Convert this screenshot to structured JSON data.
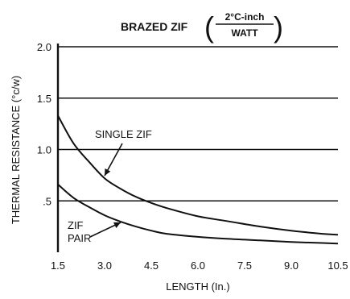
{
  "chart_data": {
    "type": "line",
    "title": "BRAZED ZIF",
    "title_fraction": {
      "numerator": "2°C-inch",
      "denominator": "WATT"
    },
    "xlabel": "LENGTH (In.)",
    "ylabel": "THERMAL RESISTANCE (°c/w)",
    "xlim": [
      1.5,
      10.5
    ],
    "ylim": [
      0,
      2.0
    ],
    "x_ticks": [
      "1.5",
      "3.0",
      "4.5",
      "6.0",
      "7.5",
      "9.0",
      "10.5"
    ],
    "y_ticks": [
      {
        "value": 0.5,
        "label": ".5"
      },
      {
        "value": 1.0,
        "label": "1.0"
      },
      {
        "value": 1.5,
        "label": "1.5"
      },
      {
        "value": 2.0,
        "label": "2.0"
      }
    ],
    "grid": "horizontal",
    "series": [
      {
        "name": "SINGLE ZIF",
        "label_lines": [
          "SINGLE ZIF"
        ],
        "x": [
          1.5,
          2.0,
          2.5,
          3.0,
          3.5,
          4.0,
          4.5,
          5.0,
          6.0,
          7.0,
          8.0,
          9.0,
          10.0,
          10.5
        ],
        "y": [
          1.33,
          1.06,
          0.88,
          0.72,
          0.62,
          0.54,
          0.48,
          0.43,
          0.35,
          0.3,
          0.25,
          0.21,
          0.18,
          0.17
        ]
      },
      {
        "name": "ZIF PAIR",
        "label_lines": [
          "ZIF",
          "PAIR"
        ],
        "x": [
          1.5,
          2.0,
          2.5,
          3.0,
          3.5,
          4.0,
          4.5,
          5.0,
          6.0,
          7.0,
          8.0,
          9.0,
          10.0,
          10.5
        ],
        "y": [
          0.66,
          0.53,
          0.44,
          0.36,
          0.3,
          0.25,
          0.21,
          0.18,
          0.15,
          0.13,
          0.115,
          0.1,
          0.09,
          0.085
        ]
      }
    ]
  }
}
